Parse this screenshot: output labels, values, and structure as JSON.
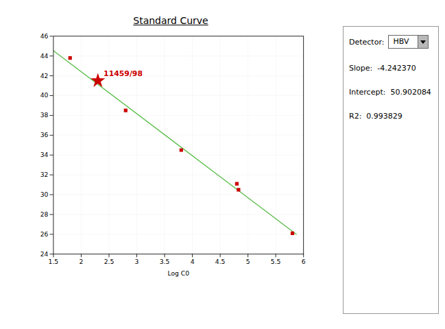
{
  "chart_data": {
    "type": "scatter",
    "title": "Standard Curve",
    "xlabel": "Log C0",
    "xlim": [
      1.5,
      6.0
    ],
    "ylim": [
      24,
      46
    ],
    "xticks": [
      1.5,
      2.0,
      2.5,
      3.0,
      3.5,
      4.0,
      4.5,
      5.0,
      5.5,
      6.0
    ],
    "yticks": [
      24,
      26,
      28,
      30,
      32,
      34,
      36,
      38,
      40,
      42,
      44,
      46
    ],
    "grid": true,
    "series": [
      {
        "type": "line",
        "color": "#55bb44",
        "x": [
          1.5,
          5.87
        ],
        "values": [
          44.538529,
          25.9993721
        ]
      },
      {
        "type": "scatter",
        "marker": "square",
        "color": "#cc0000",
        "x": [
          1.8,
          2.8,
          3.8,
          4.8,
          4.83,
          5.8
        ],
        "values": [
          43.8,
          38.5,
          34.5,
          31.1,
          30.5,
          26.1
        ]
      }
    ],
    "annotations": [
      {
        "x": 2.3,
        "y": 41.5,
        "text": "11459/98",
        "marker": "star",
        "color": "#cc0000"
      }
    ],
    "detector": {
      "label": "Detector:",
      "value": "HBV"
    },
    "stats": [
      {
        "label": "Slope:",
        "value": -4.24237,
        "value_label": "-4.242370"
      },
      {
        "label": "Intercept:",
        "value": 50.902084,
        "value_label": "50.902084"
      },
      {
        "label": "R2:",
        "value": 0.993829,
        "value_label": "0.993829"
      }
    ]
  }
}
